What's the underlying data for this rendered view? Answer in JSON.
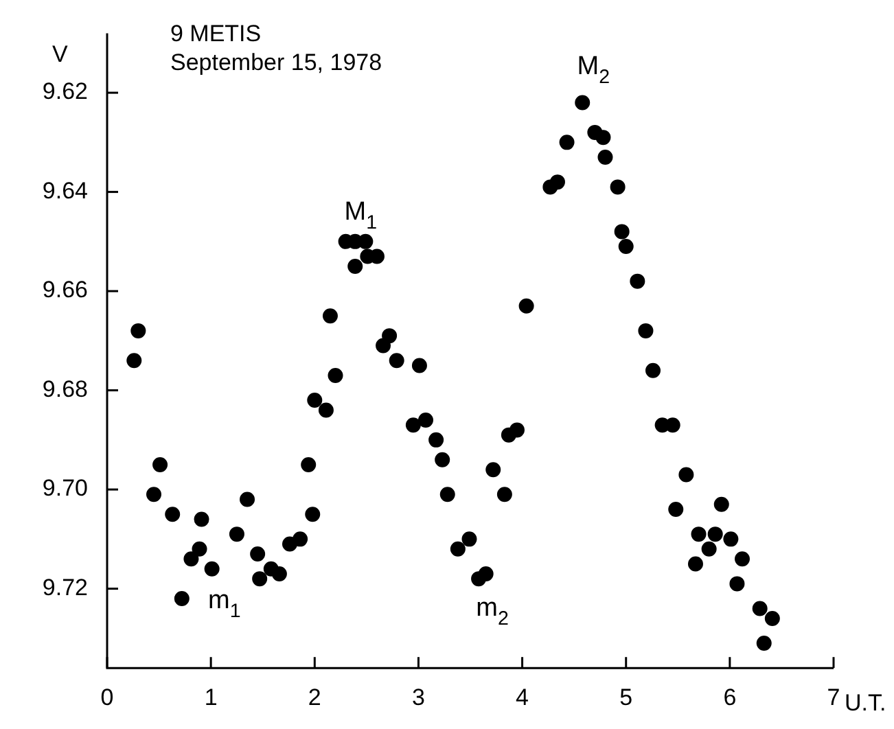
{
  "chart_data": {
    "type": "scatter",
    "title": "9 METIS",
    "subtitle": "September 15, 1978",
    "xlabel": "U.T.",
    "ylabel": "V",
    "xlim": [
      0,
      7
    ],
    "xticks": [
      0,
      1,
      2,
      3,
      4,
      5,
      6,
      7
    ],
    "ylim": [
      9.736,
      9.608
    ],
    "yticks": [
      9.62,
      9.64,
      9.66,
      9.68,
      {
        "value": 9.7,
        "label": "9.70"
      },
      9.72
    ],
    "grid": false,
    "legend": false,
    "marker": "circle",
    "series": [
      {
        "color": "#000000",
        "x": [
          0.26,
          0.3,
          0.45,
          0.51,
          0.63,
          0.72,
          0.81,
          0.89,
          0.91,
          1.01,
          1.25,
          1.35,
          1.45,
          1.47,
          1.58,
          1.66,
          1.76,
          1.86,
          1.94,
          1.98,
          2.0,
          2.11,
          2.15,
          2.2,
          2.3,
          2.39,
          2.39,
          2.49,
          2.51,
          2.6,
          2.66,
          2.72,
          2.79,
          2.95,
          3.01,
          3.07,
          3.17,
          3.23,
          3.28,
          3.38,
          3.49,
          3.58,
          3.65,
          3.72,
          3.83,
          3.87,
          3.95,
          4.04,
          4.27,
          4.34,
          4.43,
          4.58,
          4.7,
          4.78,
          4.8,
          4.92,
          4.96,
          5.0,
          5.11,
          5.19,
          5.26,
          5.35,
          5.45,
          5.48,
          5.58,
          5.67,
          5.7,
          5.8,
          5.86,
          5.92,
          6.01,
          6.07,
          6.12,
          6.29,
          6.33,
          6.41
        ],
        "values": [
          9.674,
          9.668,
          9.701,
          9.695,
          9.705,
          9.722,
          9.714,
          9.712,
          9.706,
          9.716,
          9.709,
          9.702,
          9.713,
          9.718,
          9.716,
          9.717,
          9.711,
          9.71,
          9.695,
          9.705,
          9.682,
          9.684,
          9.665,
          9.677,
          9.65,
          9.65,
          9.655,
          9.65,
          9.653,
          9.653,
          9.671,
          9.669,
          9.674,
          9.687,
          9.675,
          9.686,
          9.69,
          9.694,
          9.701,
          9.712,
          9.71,
          9.718,
          9.717,
          9.696,
          9.701,
          9.689,
          9.688,
          9.663,
          9.639,
          9.638,
          9.63,
          9.622,
          9.628,
          9.629,
          9.633,
          9.639,
          9.648,
          9.651,
          9.658,
          9.668,
          9.676,
          9.687,
          9.687,
          9.704,
          9.697,
          9.715,
          9.709,
          9.712,
          9.709,
          9.703,
          9.71,
          9.719,
          9.714,
          9.724,
          9.731,
          9.726
        ]
      }
    ],
    "annotations": [
      {
        "text": "M$_{1}$",
        "x": 2.39,
        "y": 9.65
      },
      {
        "text": "m$_{1}$",
        "x": 0.72,
        "y": 9.722
      },
      {
        "text": "M$_{2}$",
        "x": 4.58,
        "y": 9.622
      },
      {
        "text": "m$_{2}$",
        "x": 3.58,
        "y": 9.718
      }
    ]
  }
}
